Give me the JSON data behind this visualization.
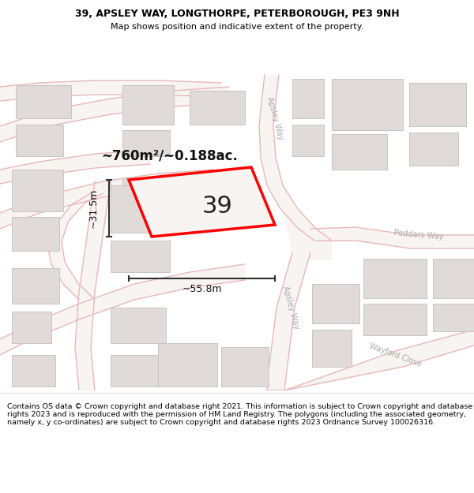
{
  "title_line1": "39, APSLEY WAY, LONGTHORPE, PETERBOROUGH, PE3 9NH",
  "title_line2": "Map shows position and indicative extent of the property.",
  "footer_text": "Contains OS data © Crown copyright and database right 2021. This information is subject to Crown copyright and database rights 2023 and is reproduced with the permission of HM Land Registry. The polygons (including the associated geometry, namely x, y co-ordinates) are subject to Crown copyright and database rights 2023 Ordnance Survey 100026316.",
  "area_label": "~760m²/~0.188ac.",
  "plot_number": "39",
  "width_label": "~55.8m",
  "height_label": "~31.5m",
  "map_bg": "#f7f4f2",
  "road_line_color": "#e8b8b8",
  "building_fill": "#e0dbd8",
  "building_edge": "#c8c4c0",
  "plot_outline_color": "#ff0000",
  "plot_fill": "#f7f4f2",
  "dim_line_color": "#303030",
  "street_label_color": "#aaaaaa",
  "title_color": "#000000",
  "footer_color": "#000000"
}
